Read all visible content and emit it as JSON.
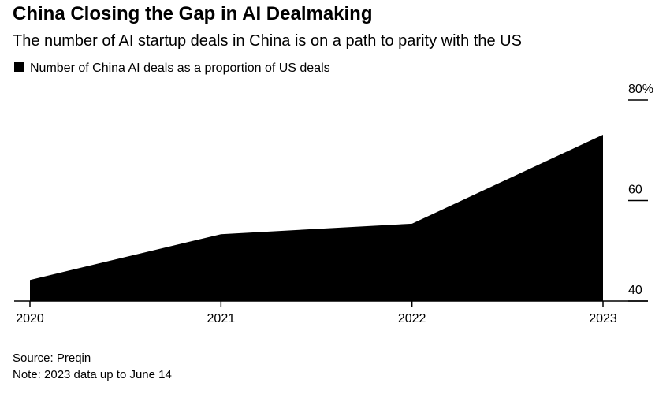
{
  "chart_data": {
    "type": "area",
    "title": "China Closing the Gap in AI Dealmaking",
    "subtitle": "The number of AI startup deals in China is on a path to parity with the US",
    "series": [
      {
        "name": "Number of China AI deals as a proportion of US deals",
        "color": "#000000",
        "values": [
          44.2,
          53.3,
          55.4,
          73.1
        ]
      }
    ],
    "categories": [
      "2020",
      "2021",
      "2022",
      "2023"
    ],
    "ylim": [
      40,
      80
    ],
    "yticks": [
      40,
      60,
      {
        "value": 80,
        "label": "80%"
      }
    ],
    "source": "Source: Preqin",
    "note": "Note: 2023 data up to June 14"
  }
}
